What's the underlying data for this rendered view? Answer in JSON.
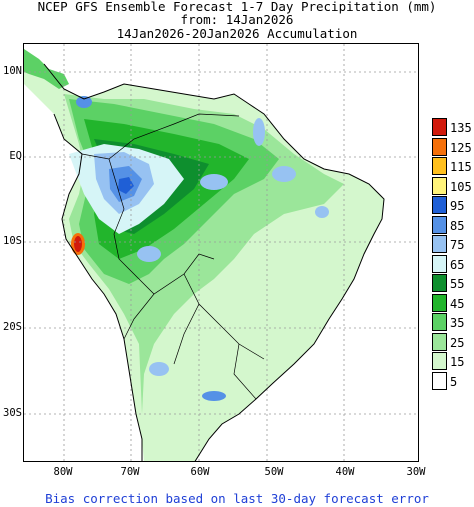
{
  "title": {
    "line1": "NCEP GFS Ensemble Forecast 1-7 Day Precipitation (mm)",
    "line2": "from: 14Jan2026",
    "line3": "14Jan2026-20Jan2026 Accumulation"
  },
  "lat_labels": [
    "10N",
    "EQ",
    "10S",
    "20S",
    "30S"
  ],
  "lon_labels": [
    "80W",
    "70W",
    "60W",
    "50W",
    "40W",
    "30W"
  ],
  "colorbar": {
    "labels": [
      "135",
      "125",
      "115",
      "105",
      "95",
      "85",
      "75",
      "65",
      "55",
      "45",
      "35",
      "25",
      "15",
      "5"
    ],
    "colors": [
      "#d11a0c",
      "#f5700a",
      "#ffc01e",
      "#fff37a",
      "#1f5fd6",
      "#5591e6",
      "#97c2f2",
      "#d6f5f7",
      "#0e8f2e",
      "#22b52c",
      "#5cd165",
      "#9be69a",
      "#d4f7cd",
      "#ffffff"
    ]
  },
  "footer": "Bias correction based on last 30-day forecast error"
}
